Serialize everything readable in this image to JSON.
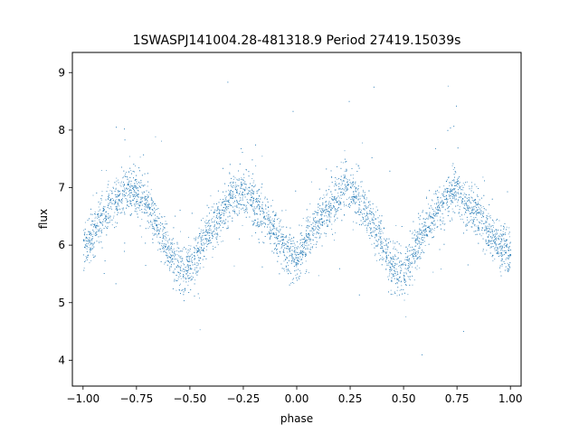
{
  "chart_data": {
    "type": "scatter",
    "title": "1SWASPJ141004.28-481318.9 Period 27419.15039s",
    "xlabel": "phase",
    "ylabel": "flux",
    "xlim": [
      -1.05,
      1.05
    ],
    "ylim": [
      3.55,
      9.35
    ],
    "xticks": [
      -1.0,
      -0.75,
      -0.5,
      -0.25,
      0.0,
      0.25,
      0.5,
      0.75,
      1.0
    ],
    "xtick_labels": [
      "−1.00",
      "−0.75",
      "−0.50",
      "−0.25",
      "0.00",
      "0.25",
      "0.50",
      "0.75",
      "1.00"
    ],
    "yticks": [
      4,
      5,
      6,
      7,
      8,
      9
    ],
    "ytick_labels": [
      "4",
      "5",
      "6",
      "7",
      "8",
      "9"
    ],
    "grid": false,
    "legend": "none",
    "marker_color": "#1f77b4",
    "series": [
      {
        "phase": [
          -1.0,
          -0.9,
          -0.8,
          -0.75,
          -0.7,
          -0.6,
          -0.55,
          -0.5,
          -0.4,
          -0.3,
          -0.25,
          -0.2,
          -0.1,
          -0.05,
          0.0,
          0.1,
          0.2,
          0.25,
          0.3,
          0.4,
          0.45,
          0.5,
          0.6,
          0.7,
          0.75,
          0.8,
          0.9,
          1.0
        ],
        "flux": [
          5.95,
          6.55,
          6.95,
          6.95,
          6.7,
          5.95,
          5.6,
          5.6,
          6.3,
          6.85,
          6.95,
          6.75,
          6.2,
          5.9,
          5.8,
          6.4,
          6.9,
          7.0,
          6.75,
          6.0,
          5.6,
          5.55,
          6.3,
          6.85,
          6.95,
          6.75,
          6.2,
          5.8
        ]
      }
    ]
  }
}
